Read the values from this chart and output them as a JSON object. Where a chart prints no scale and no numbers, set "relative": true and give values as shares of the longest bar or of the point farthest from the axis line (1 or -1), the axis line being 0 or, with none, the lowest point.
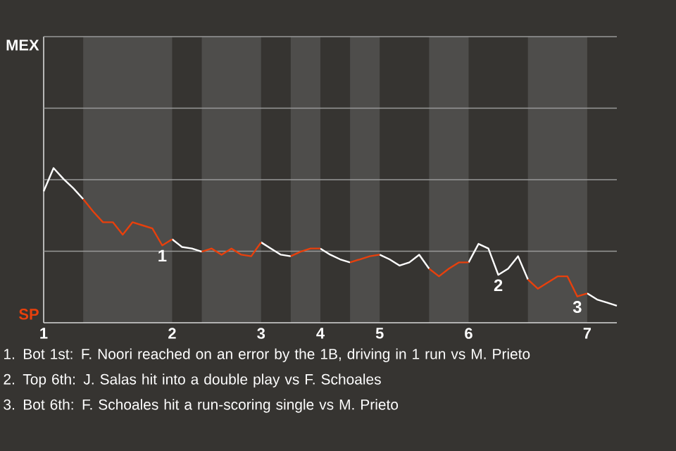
{
  "chart_data": {
    "type": "line",
    "relative": true,
    "categories": [
      "1",
      null,
      null,
      null,
      null,
      null,
      null,
      null,
      null,
      null,
      null,
      null,
      null,
      "2",
      null,
      null,
      null,
      null,
      null,
      null,
      null,
      null,
      "3",
      null,
      null,
      null,
      null,
      null,
      "4",
      null,
      null,
      null,
      null,
      null,
      "5",
      null,
      null,
      null,
      null,
      null,
      null,
      null,
      null,
      "6",
      null,
      null,
      null,
      null,
      null,
      null,
      null,
      null,
      null,
      null,
      null,
      "7",
      null,
      null,
      null
    ],
    "marker": "none",
    "ref_lines": [
      {
        "axis": "y",
        "value": 0.4625,
        "color": "#999999"
      },
      {
        "axis": "y",
        "value": 0.925,
        "color": "#999999"
      },
      {
        "axis": "y",
        "value": 1.3875,
        "color": "#999999"
      },
      {
        "axis": "y",
        "value": 1.85,
        "color": "#999999"
      }
    ],
    "series": [
      {
        "color": "#ffffff",
        "values": [
          0.85,
          1,
          0.93,
          0.87,
          0.8,
          null,
          null,
          null,
          null,
          null,
          null,
          null,
          null,
          0.54,
          0.49,
          0.48,
          0.46,
          null,
          null,
          null,
          null,
          null,
          0.52,
          0.48,
          0.44,
          0.43,
          null,
          null,
          0.48,
          0.44,
          0.41,
          0.39,
          null,
          null,
          0.44,
          0.41,
          0.37,
          0.39,
          0.44,
          0.35,
          null,
          null,
          null,
          0.39,
          0.51,
          0.48,
          0.31,
          0.35,
          0.43,
          0.28,
          null,
          null,
          null,
          null,
          null,
          0.19,
          0.15,
          0.13,
          0.11
        ]
      },
      {
        "color": "#e8400c",
        "values": [
          null,
          null,
          null,
          null,
          0.8,
          0.72,
          0.65,
          0.65,
          0.57,
          0.65,
          0.63,
          0.61,
          0.5,
          0.54,
          null,
          null,
          0.46,
          0.48,
          0.44,
          0.48,
          0.44,
          0.43,
          0.52,
          null,
          null,
          0.43,
          0.46,
          0.48,
          0.48,
          null,
          null,
          0.39,
          0.41,
          0.43,
          0.44,
          null,
          null,
          null,
          null,
          0.35,
          0.3,
          0.35,
          0.39,
          0.39,
          null,
          null,
          null,
          null,
          null,
          0.28,
          0.22,
          0.26,
          0.3,
          0.3,
          0.17,
          0.19,
          null,
          null,
          null
        ]
      }
    ],
    "annotations": [
      "MEX",
      "SP",
      {
        "text": "1",
        "y": 0.5
      },
      {
        "text": "2",
        "y": 0.31
      },
      {
        "text": "3",
        "y": 0.17
      },
      "1. Bot 1st: F. Noori reached on an error by the 1B, driving in 1 run vs M. Prieto",
      "2. Top 6th: J. Salas hit into a double play vs F. Schoales",
      "3. Bot 6th: F. Schoales hit a run-scoring single vs M. Prieto"
    ]
  }
}
